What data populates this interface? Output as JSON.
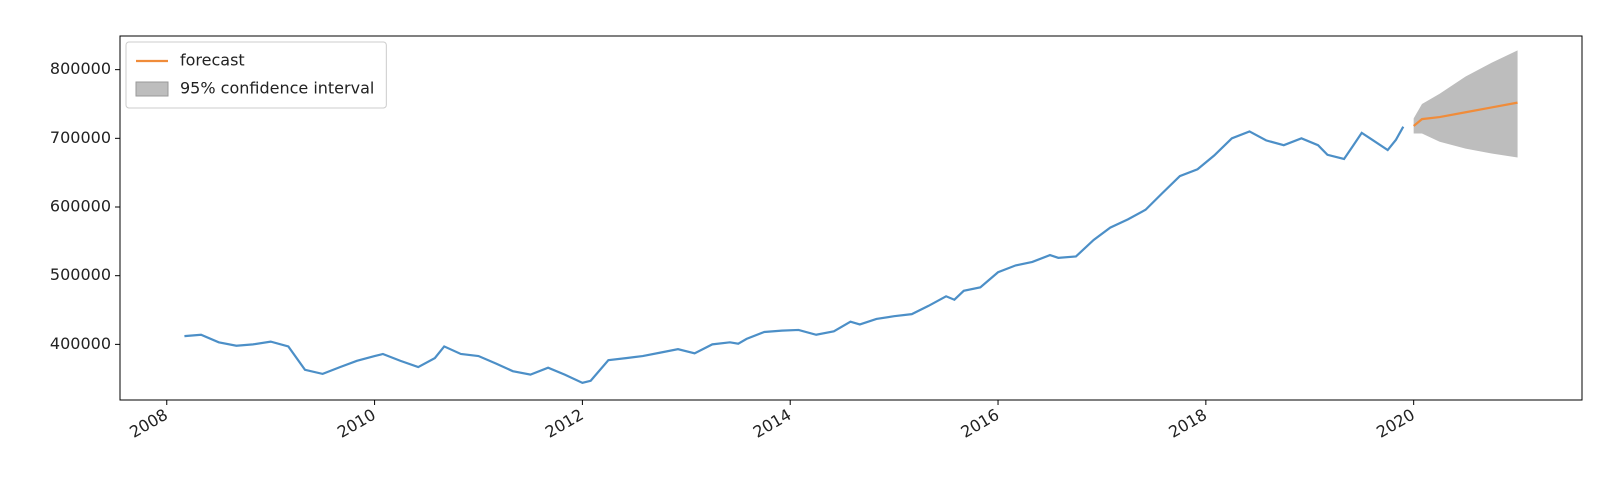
{
  "chart_data": {
    "type": "line",
    "legend": "upper left",
    "xlim": [
      2007.55,
      2021.62
    ],
    "xticks": [
      2008,
      2010,
      2012,
      2014,
      2016,
      2018,
      2020
    ],
    "ylim": [
      319000,
      849000
    ],
    "yticks": [
      400000,
      500000,
      600000,
      700000,
      800000
    ],
    "series": [
      {
        "color": "#4c8fc7",
        "x": [
          2008.17,
          2008.33,
          2008.5,
          2008.67,
          2008.83,
          2009.0,
          2009.17,
          2009.33,
          2009.5,
          2009.67,
          2009.83,
          2010.0,
          2010.08,
          2010.25,
          2010.42,
          2010.58,
          2010.67,
          2010.83,
          2011.0,
          2011.17,
          2011.33,
          2011.5,
          2011.67,
          2011.83,
          2012.0,
          2012.08,
          2012.25,
          2012.42,
          2012.58,
          2012.75,
          2012.92,
          2013.08,
          2013.25,
          2013.42,
          2013.5,
          2013.58,
          2013.75,
          2013.92,
          2014.08,
          2014.25,
          2014.42,
          2014.58,
          2014.67,
          2014.83,
          2015.0,
          2015.17,
          2015.33,
          2015.5,
          2015.58,
          2015.67,
          2015.83,
          2016.0,
          2016.17,
          2016.33,
          2016.5,
          2016.58,
          2016.75,
          2016.92,
          2017.08,
          2017.25,
          2017.42,
          2017.58,
          2017.75,
          2017.92,
          2018.08,
          2018.25,
          2018.42,
          2018.58,
          2018.75,
          2018.92,
          2019.08,
          2019.17,
          2019.33,
          2019.42,
          2019.5,
          2019.58,
          2019.75,
          2019.83,
          2019.9
        ],
        "values": [
          412000,
          414000,
          403000,
          398000,
          400000,
          404000,
          397000,
          363000,
          357000,
          367000,
          376000,
          383000,
          386000,
          376000,
          367000,
          380000,
          397000,
          386000,
          383000,
          372000,
          361000,
          356000,
          366000,
          356000,
          344000,
          347000,
          377000,
          380000,
          383000,
          388000,
          393000,
          387000,
          400000,
          403000,
          401000,
          408000,
          418000,
          420000,
          421000,
          414000,
          419000,
          433000,
          429000,
          437000,
          441000,
          444000,
          456000,
          470000,
          465000,
          478000,
          483000,
          505000,
          515000,
          520000,
          530000,
          526000,
          528000,
          552000,
          570000,
          582000,
          596000,
          620000,
          645000,
          655000,
          675000,
          700000,
          710000,
          697000,
          690000,
          700000,
          690000,
          676000,
          670000,
          690000,
          708000,
          700000,
          683000,
          698000,
          717000
        ]
      },
      {
        "name": "forecast",
        "color": "#f08c3a",
        "x": [
          2020.0,
          2020.08,
          2020.25,
          2020.5,
          2020.75,
          2021.0
        ],
        "values": [
          718000,
          728000,
          731000,
          738000,
          745000,
          752000
        ]
      }
    ],
    "band": {
      "name": "95% confidence interval",
      "color": "#bdbdbd",
      "x": [
        2020.0,
        2020.08,
        2020.25,
        2020.5,
        2020.75,
        2021.0
      ],
      "lower": [
        707000,
        707000,
        695000,
        685000,
        678000,
        672000
      ],
      "upper": [
        729000,
        750000,
        765000,
        790000,
        810000,
        828000
      ]
    }
  }
}
